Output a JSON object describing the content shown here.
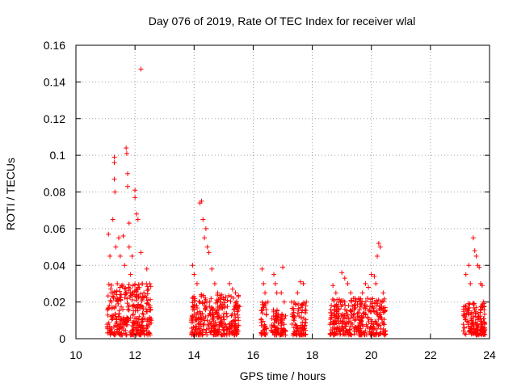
{
  "chart_data": {
    "type": "scatter",
    "title": "Day 076 of 2019, Rate Of TEC Index for receiver wlal",
    "xlabel": "GPS time / hours",
    "ylabel": "ROTI / TECUs",
    "xlim": [
      10,
      24
    ],
    "ylim": [
      0,
      0.16
    ],
    "xticks": [
      10,
      12,
      14,
      16,
      18,
      20,
      22,
      24
    ],
    "yticks": [
      0,
      0.02,
      0.04,
      0.06,
      0.08,
      0.1,
      0.12,
      0.14,
      0.16
    ],
    "xtick_labels": [
      "10",
      "12",
      "14",
      "16",
      "18",
      "20",
      "22",
      "24"
    ],
    "ytick_labels": [
      "0",
      "0.02",
      "0.04",
      "0.06",
      "0.08",
      "0.1",
      "0.12",
      "0.14",
      "0.16"
    ],
    "grid": true,
    "marker": "+",
    "marker_color": "#ff0000",
    "series": [
      {
        "name": "ROTI",
        "points": [
          [
            11.1,
            0.057
          ],
          [
            11.15,
            0.045
          ],
          [
            11.2,
            0.02
          ],
          [
            11.25,
            0.065
          ],
          [
            11.3,
            0.099
          ],
          [
            11.3,
            0.096
          ],
          [
            11.3,
            0.087
          ],
          [
            11.32,
            0.08
          ],
          [
            11.35,
            0.05
          ],
          [
            11.4,
            0.03
          ],
          [
            11.45,
            0.055
          ],
          [
            11.5,
            0.045
          ],
          [
            11.55,
            0.01
          ],
          [
            11.6,
            0.056
          ],
          [
            11.65,
            0.04
          ],
          [
            11.7,
            0.104
          ],
          [
            11.72,
            0.101
          ],
          [
            11.75,
            0.09
          ],
          [
            11.75,
            0.083
          ],
          [
            11.8,
            0.063
          ],
          [
            11.8,
            0.05
          ],
          [
            11.85,
            0.035
          ],
          [
            11.9,
            0.045
          ],
          [
            12.0,
            0.081
          ],
          [
            12.0,
            0.077
          ],
          [
            12.05,
            0.068
          ],
          [
            12.1,
            0.065
          ],
          [
            12.2,
            0.147
          ],
          [
            12.2,
            0.047
          ],
          [
            12.25,
            0.03
          ],
          [
            12.3,
            0.025
          ],
          [
            12.4,
            0.038
          ],
          [
            12.5,
            0.03
          ],
          [
            12.55,
            0.01
          ],
          [
            13.95,
            0.04
          ],
          [
            14.0,
            0.035
          ],
          [
            14.1,
            0.03
          ],
          [
            14.2,
            0.074
          ],
          [
            14.25,
            0.075
          ],
          [
            14.3,
            0.065
          ],
          [
            14.35,
            0.055
          ],
          [
            14.4,
            0.06
          ],
          [
            14.45,
            0.05
          ],
          [
            14.5,
            0.047
          ],
          [
            14.6,
            0.038
          ],
          [
            14.7,
            0.03
          ],
          [
            14.8,
            0.025
          ],
          [
            14.9,
            0.02
          ],
          [
            15.0,
            0.018
          ],
          [
            15.2,
            0.03
          ],
          [
            15.3,
            0.027
          ],
          [
            15.4,
            0.025
          ],
          [
            15.5,
            0.01
          ],
          [
            16.3,
            0.038
          ],
          [
            16.35,
            0.03
          ],
          [
            16.4,
            0.025
          ],
          [
            16.5,
            0.02
          ],
          [
            16.7,
            0.035
          ],
          [
            16.75,
            0.03
          ],
          [
            16.8,
            0.025
          ],
          [
            16.95,
            0.025
          ],
          [
            17.0,
            0.039
          ],
          [
            17.05,
            0.02
          ],
          [
            17.3,
            0.02
          ],
          [
            17.5,
            0.025
          ],
          [
            17.6,
            0.031
          ],
          [
            17.7,
            0.03
          ],
          [
            17.8,
            0.02
          ],
          [
            18.7,
            0.029
          ],
          [
            18.8,
            0.025
          ],
          [
            18.9,
            0.02
          ],
          [
            19.0,
            0.036
          ],
          [
            19.1,
            0.033
          ],
          [
            19.2,
            0.03
          ],
          [
            19.3,
            0.025
          ],
          [
            19.4,
            0.022
          ],
          [
            19.6,
            0.02
          ],
          [
            19.7,
            0.025
          ],
          [
            19.8,
            0.03
          ],
          [
            19.9,
            0.028
          ],
          [
            20.0,
            0.035
          ],
          [
            20.1,
            0.034
          ],
          [
            20.15,
            0.03
          ],
          [
            20.2,
            0.045
          ],
          [
            20.25,
            0.052
          ],
          [
            20.3,
            0.05
          ],
          [
            20.4,
            0.025
          ],
          [
            23.2,
            0.035
          ],
          [
            23.3,
            0.04
          ],
          [
            23.35,
            0.03
          ],
          [
            23.45,
            0.055
          ],
          [
            23.5,
            0.048
          ],
          [
            23.55,
            0.045
          ],
          [
            23.6,
            0.04
          ],
          [
            23.65,
            0.039
          ],
          [
            23.7,
            0.03
          ],
          [
            23.75,
            0.029
          ],
          [
            23.8,
            0.02
          ]
        ]
      }
    ],
    "dense_bands": [
      {
        "x_start": 11.05,
        "x_end": 12.55,
        "y_low": 0.002,
        "y_high": 0.03,
        "count": 320
      },
      {
        "x_start": 13.9,
        "x_end": 15.55,
        "y_low": 0.002,
        "y_high": 0.025,
        "count": 320
      },
      {
        "x_start": 16.25,
        "x_end": 16.45,
        "y_low": 0.002,
        "y_high": 0.02,
        "count": 40
      },
      {
        "x_start": 16.6,
        "x_end": 16.85,
        "y_low": 0.002,
        "y_high": 0.018,
        "count": 50
      },
      {
        "x_start": 16.9,
        "x_end": 17.1,
        "y_low": 0.002,
        "y_high": 0.015,
        "count": 40
      },
      {
        "x_start": 17.3,
        "x_end": 17.8,
        "y_low": 0.002,
        "y_high": 0.02,
        "count": 90
      },
      {
        "x_start": 18.6,
        "x_end": 20.5,
        "y_low": 0.002,
        "y_high": 0.022,
        "count": 340
      },
      {
        "x_start": 23.1,
        "x_end": 23.85,
        "y_low": 0.002,
        "y_high": 0.02,
        "count": 150
      }
    ]
  }
}
